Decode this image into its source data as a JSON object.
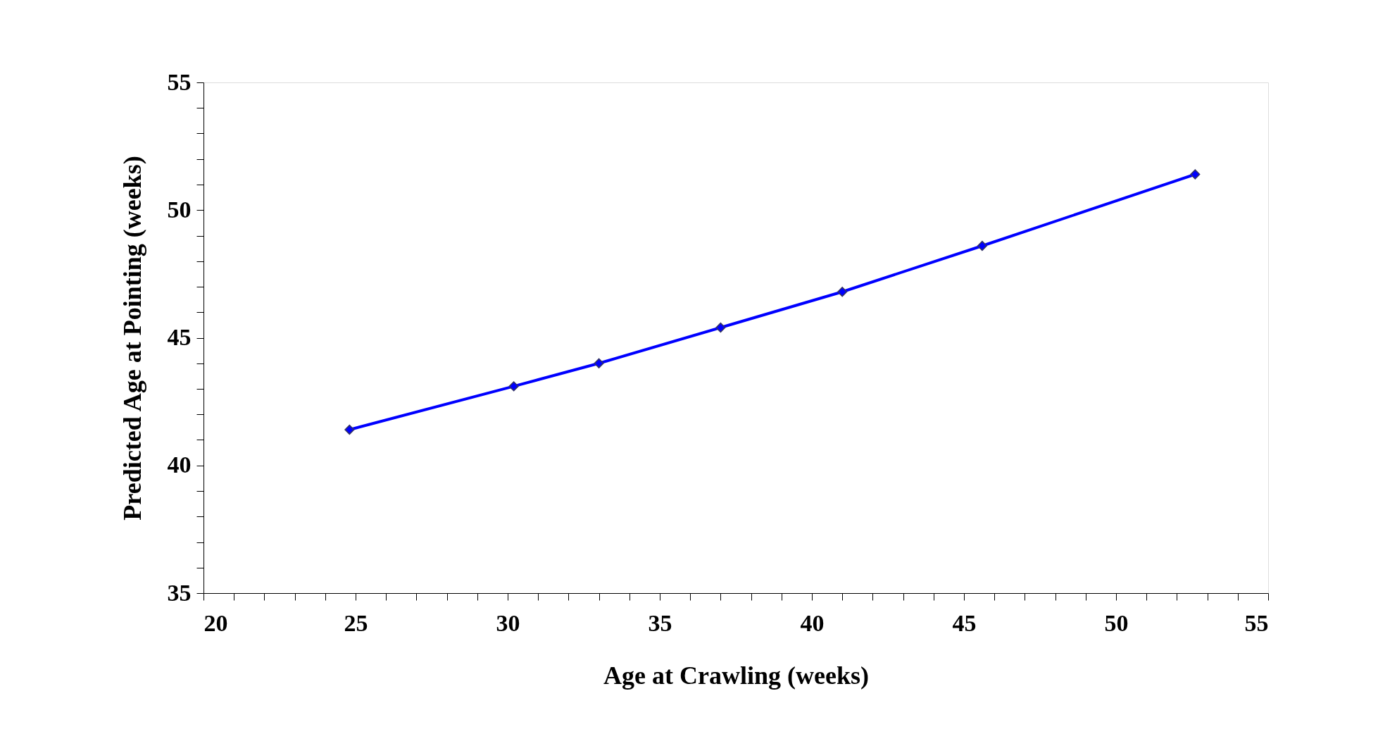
{
  "chart_data": {
    "type": "line",
    "xlabel": "Age at Crawling (weeks)",
    "ylabel": "Predicted Age at Pointing (weeks)",
    "x": [
      24.8,
      30.2,
      33.0,
      37.0,
      41.0,
      45.6,
      52.6
    ],
    "series": [
      {
        "color": "#0000ff",
        "values": [
          41.4,
          43.1,
          44.0,
          45.4,
          46.8,
          48.6,
          51.4
        ]
      }
    ],
    "xlim": [
      20,
      55
    ],
    "ylim": [
      35,
      55
    ],
    "xticks": [
      20,
      {
        "value": 21,
        "label": null
      },
      {
        "value": 22,
        "label": null
      },
      {
        "value": 23,
        "label": null
      },
      {
        "value": 24,
        "label": null
      },
      25,
      {
        "value": 26,
        "label": null
      },
      {
        "value": 27,
        "label": null
      },
      {
        "value": 28,
        "label": null
      },
      {
        "value": 29,
        "label": null
      },
      30,
      {
        "value": 31,
        "label": null
      },
      {
        "value": 32,
        "label": null
      },
      {
        "value": 33,
        "label": null
      },
      {
        "value": 34,
        "label": null
      },
      35,
      {
        "value": 36,
        "label": null
      },
      {
        "value": 37,
        "label": null
      },
      {
        "value": 38,
        "label": null
      },
      {
        "value": 39,
        "label": null
      },
      40,
      {
        "value": 41,
        "label": null
      },
      {
        "value": 42,
        "label": null
      },
      {
        "value": 43,
        "label": null
      },
      {
        "value": 44,
        "label": null
      },
      45,
      {
        "value": 46,
        "label": null
      },
      {
        "value": 47,
        "label": null
      },
      {
        "value": 48,
        "label": null
      },
      {
        "value": 49,
        "label": null
      },
      50,
      {
        "value": 51,
        "label": null
      },
      {
        "value": 52,
        "label": null
      },
      {
        "value": 53,
        "label": null
      },
      {
        "value": 54,
        "label": null
      },
      55
    ],
    "yticks": [
      35,
      {
        "value": 36,
        "label": null
      },
      {
        "value": 37,
        "label": null
      },
      {
        "value": 38,
        "label": null
      },
      {
        "value": 39,
        "label": null
      },
      40,
      {
        "value": 41,
        "label": null
      },
      {
        "value": 42,
        "label": null
      },
      {
        "value": 43,
        "label": null
      },
      {
        "value": 44,
        "label": null
      },
      45,
      {
        "value": 46,
        "label": null
      },
      {
        "value": 47,
        "label": null
      },
      {
        "value": 48,
        "label": null
      },
      {
        "value": 49,
        "label": null
      },
      50,
      {
        "value": 51,
        "label": null
      },
      {
        "value": 52,
        "label": null
      },
      {
        "value": 53,
        "label": null
      },
      {
        "value": 54,
        "label": null
      },
      55
    ],
    "grid": false,
    "marker": "diamond",
    "line_style": "solid"
  }
}
